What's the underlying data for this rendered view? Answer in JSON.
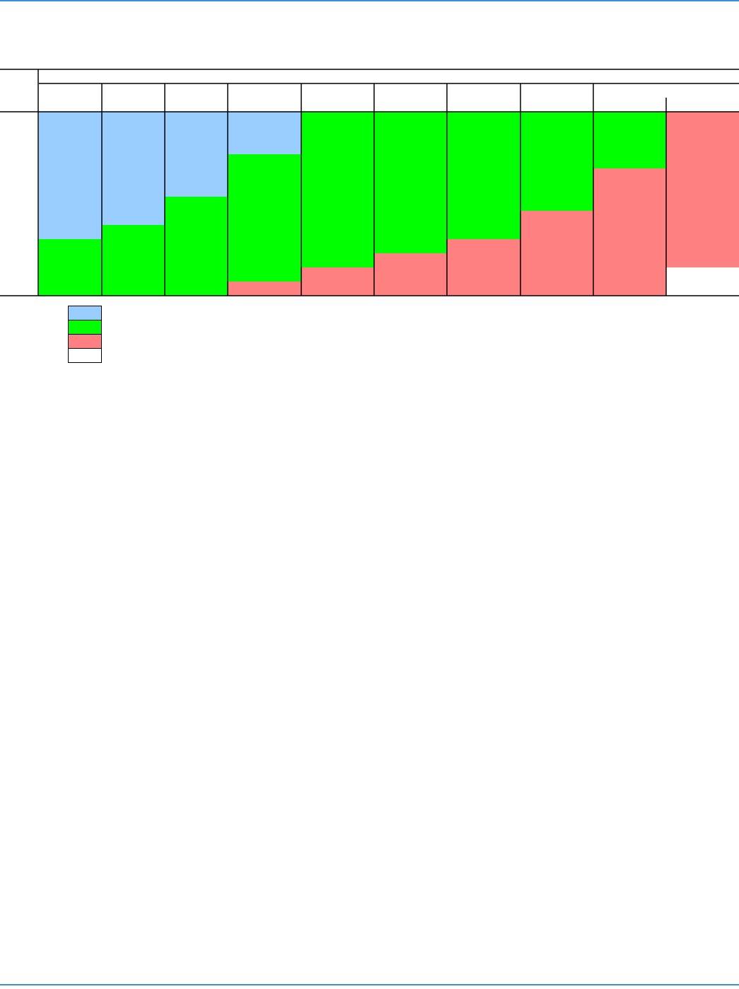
{
  "chart_data": {
    "type": "bar",
    "stacked": true,
    "ylim": [
      0,
      13
    ],
    "series": [
      {
        "color": "#ffffff",
        "values": [
          0,
          0,
          0,
          0,
          0,
          0,
          0,
          0,
          0,
          2
        ]
      },
      {
        "color": "#ff8080",
        "values": [
          0,
          0,
          0,
          1,
          2,
          3,
          4,
          6,
          9,
          11
        ]
      },
      {
        "color": "#00ff00",
        "values": [
          4,
          5,
          7,
          9,
          11,
          10,
          9,
          7,
          4,
          0
        ]
      },
      {
        "color": "#99ccff",
        "values": [
          9,
          8,
          6,
          3,
          0,
          0,
          0,
          0,
          0,
          0
        ]
      }
    ],
    "legend": true
  }
}
